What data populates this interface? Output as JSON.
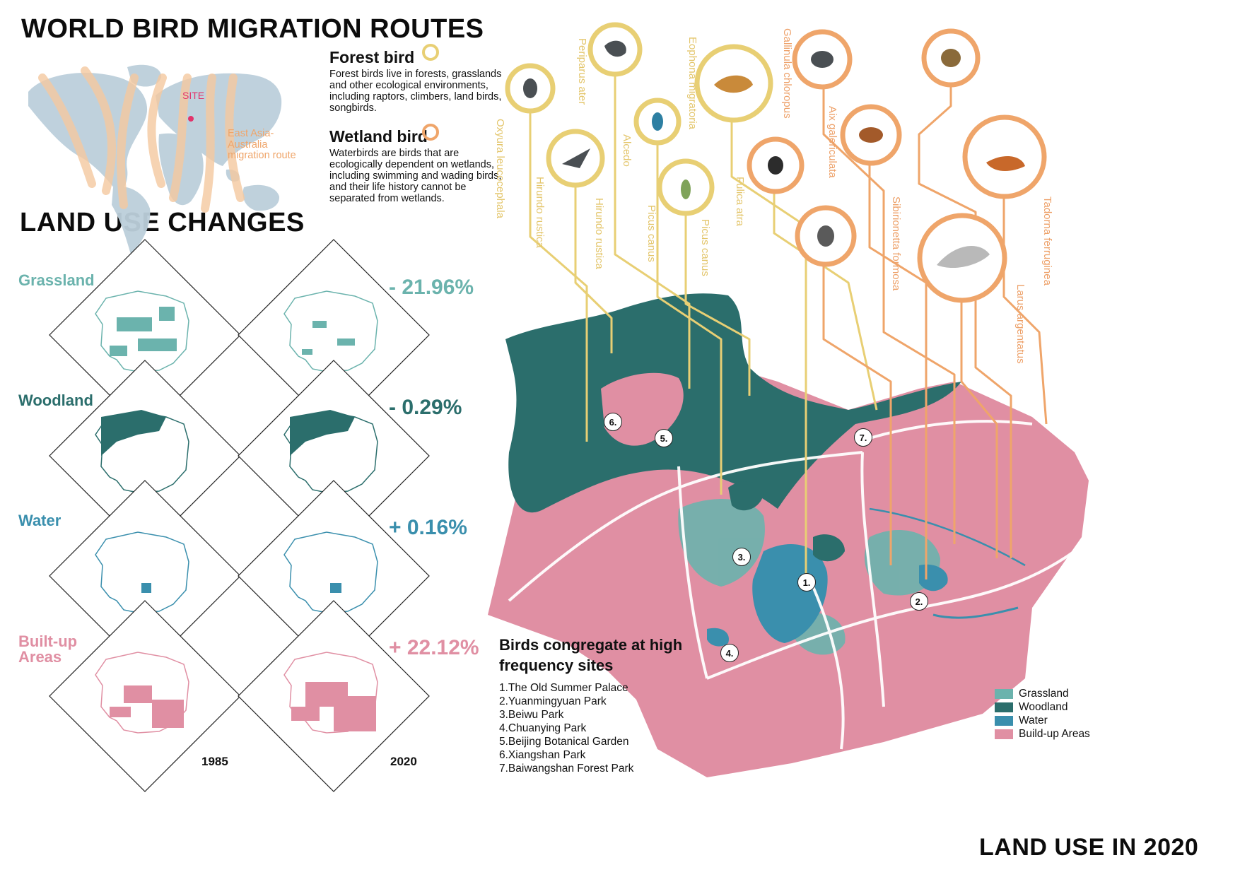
{
  "titles": {
    "migration": "WORLD BIRD MIGRATION ROUTES",
    "land_use_changes": "LAND USE CHANGES",
    "land_use_2020": "LAND USE IN 2020"
  },
  "world_map": {
    "site_label": "SITE",
    "route_label": "East Asia-Australia migration route"
  },
  "legend": {
    "forest": {
      "title": "Forest bird",
      "text": "Forest birds live in forests, grasslands and other ecological environments, including raptors, climbers, land birds, songbirds.",
      "ring_color": "#e8cf74"
    },
    "wetland": {
      "title": "Wetland bird",
      "text": "Waterbirds are birds that are ecologically dependent on wetlands, including swimming and wading birds, and their life history cannot be separated from wetlands.",
      "ring_color": "#efa56a"
    }
  },
  "land_use_changes": {
    "years": [
      "1985",
      "2020"
    ],
    "rows": [
      {
        "name": "Grassland",
        "change": "- 21.96%",
        "color": "#6bb3ad"
      },
      {
        "name": "Woodland",
        "change": "- 0.29%",
        "color": "#2b6e6c"
      },
      {
        "name": "Water",
        "change": "+ 0.16%",
        "color": "#3a8fad"
      },
      {
        "name": "Built-up Areas",
        "change": "+ 22.12%",
        "color": "#e08fa3"
      }
    ]
  },
  "birds": [
    {
      "name": "Oxyura leucocephala",
      "type": "forest"
    },
    {
      "name": "Periparus ater",
      "type": "forest"
    },
    {
      "name": "Hirundo rustica",
      "type": "forest"
    },
    {
      "name": "Hirundo rustica",
      "type": "forest"
    },
    {
      "name": "Alcedo",
      "type": "forest"
    },
    {
      "name": "Picus canus",
      "type": "forest"
    },
    {
      "name": "Picus canus",
      "type": "forest"
    },
    {
      "name": "Eophona migratoria",
      "type": "forest"
    },
    {
      "name": "Fulica atra",
      "type": "forest"
    },
    {
      "name": "Gallinula chloropus",
      "type": "wetland"
    },
    {
      "name": "Aix galericulata",
      "type": "wetland"
    },
    {
      "name": "Sibirionetta formosa",
      "type": "wetland"
    },
    {
      "name": "Tadorna ferruginea",
      "type": "wetland"
    },
    {
      "name": "Larus argentatus",
      "type": "wetland"
    }
  ],
  "sites": {
    "title": "Birds congregate at high frequency sites",
    "list": [
      "1.The Old Summer Palace",
      "2.Yuanmingyuan Park",
      "3.Beiwu Park",
      "4.Chuanying Park",
      "5.Beijing Botanical Garden",
      "6.Xiangshan Park",
      "7.Baiwangshan Forest Park"
    ],
    "markers": [
      "1.",
      "2.",
      "3.",
      "4.",
      "5.",
      "6.",
      "7."
    ]
  },
  "land_use_legend": [
    {
      "label": "Grassland",
      "color": "#6bb3ad"
    },
    {
      "label": "Woodland",
      "color": "#2b6e6c"
    },
    {
      "label": "Water",
      "color": "#3a8fad"
    },
    {
      "label": "Build-up Areas",
      "color": "#e08fa3"
    }
  ]
}
